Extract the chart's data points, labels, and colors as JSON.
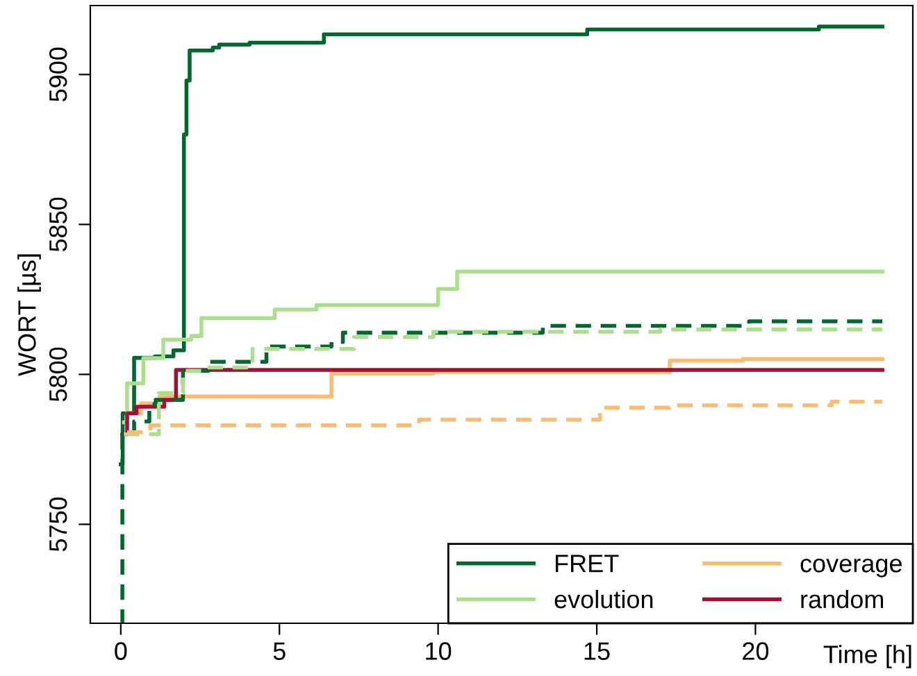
{
  "chart_data": {
    "type": "step",
    "xlabel": "Time [h]",
    "ylabel": "WORT [µs]",
    "xlim": [
      -0.96,
      24.96
    ],
    "ylim": [
      5717,
      5923
    ],
    "xticks": [
      0,
      5,
      10,
      15,
      20
    ],
    "yticks": [
      5750,
      5800,
      5850,
      5900
    ],
    "grid": false,
    "legend": "bottom right",
    "series": [
      {
        "name": "FRET",
        "color": "#00682f",
        "line_style": "solid",
        "x": [
          0,
          0.06,
          0.42,
          1.08,
          1.66,
          1.99,
          2.07,
          2.17,
          2.9,
          3.1,
          4.06,
          6.4,
          14.7,
          22,
          24
        ],
        "values": [
          5770,
          5787,
          5805.5,
          5806,
          5808,
          5880,
          5898,
          5908,
          5909,
          5910,
          5910.6,
          5913.4,
          5915,
          5916,
          5916
        ]
      },
      {
        "name": "evolution",
        "color": "#addd8e",
        "line_style": "solid",
        "x": [
          0.1,
          0.2,
          0.71,
          1.34,
          2.22,
          2.54,
          4.85,
          6.17,
          10.0,
          10.6,
          24
        ],
        "values": [
          5784,
          5797,
          5805.4,
          5811.6,
          5812.8,
          5818.8,
          5821.6,
          5823.1,
          5828.5,
          5834.3,
          5834.3
        ]
      },
      {
        "name": "coverage",
        "color": "#fdbb74",
        "line_style": "solid",
        "x": [
          0.3,
          0.64,
          1.22,
          6.64,
          9.85,
          17.3,
          19.6,
          24
        ],
        "values": [
          5787,
          5790.3,
          5792.6,
          5800.3,
          5800.8,
          5804.6,
          5805.1,
          5805.1
        ]
      },
      {
        "name": "random",
        "color": "#a50f35",
        "line_style": "solid",
        "x": [
          0.05,
          0.2,
          0.5,
          1.37,
          1.74,
          24
        ],
        "values": [
          5780,
          5787,
          5789.2,
          5791.5,
          5801.5,
          5801.5
        ]
      },
      {
        "color": "#00682f",
        "line_style": "dashed",
        "x": [
          0,
          0.05,
          0.42,
          0.9,
          1.1,
          1.96,
          2.76,
          4.59,
          6.64,
          7.0,
          13.3,
          19.8,
          24
        ],
        "values": [
          5717,
          5780.7,
          5784.3,
          5790,
          5791.5,
          5801.2,
          5804.2,
          5809.3,
          5810.8,
          5813.9,
          5816.2,
          5817.7,
          5817.7
        ]
      },
      {
        "color": "#addd8e",
        "line_style": "dashed",
        "x": [
          0.1,
          1.2,
          1.96,
          2.6,
          4.15,
          7.35,
          9.85,
          17,
          24
        ],
        "values": [
          5780,
          5793.8,
          5801.2,
          5802.3,
          5808.5,
          5812.4,
          5814.2,
          5815,
          5815
        ]
      },
      {
        "color": "#fdbb74",
        "line_style": "dashed",
        "x": [
          0.2,
          0.93,
          9.4,
          15.1,
          17.3,
          22.4,
          24
        ],
        "values": [
          5780.7,
          5783,
          5784.9,
          5788.9,
          5789.7,
          5790.9,
          5790.9
        ]
      }
    ]
  }
}
